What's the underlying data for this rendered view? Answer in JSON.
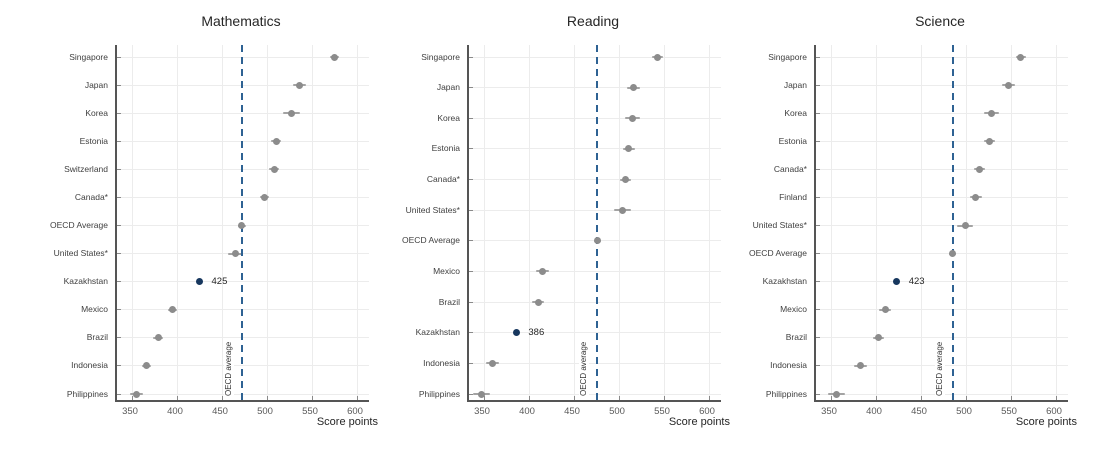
{
  "figure": {
    "background": "#ffffff",
    "highlight_country": "Kazakhstan",
    "reference_line_label": "OECD average",
    "colors": {
      "dot": "#8c8c8c",
      "highlight_dot": "#17375e",
      "reference_line": "#2e6293",
      "gridline": "#ececec",
      "axis": "#555555"
    }
  },
  "chart_data": [
    {
      "type": "scatter",
      "title": "Mathematics",
      "xlabel": "Score points",
      "xlim": [
        333,
        613
      ],
      "xticks": [
        350,
        400,
        450,
        500,
        550,
        600
      ],
      "grid": true,
      "reference_line": {
        "value": 472,
        "label": "OECD average"
      },
      "points": [
        {
          "label": "Singapore",
          "value": 575,
          "err": 2,
          "highlight": false
        },
        {
          "label": "Japan",
          "value": 536,
          "err": 4,
          "highlight": false
        },
        {
          "label": "Korea",
          "value": 527,
          "err": 6,
          "highlight": false
        },
        {
          "label": "Estonia",
          "value": 510,
          "err": 2,
          "highlight": false
        },
        {
          "label": "Switzerland",
          "value": 508,
          "err": 2,
          "highlight": false
        },
        {
          "label": "Canada*",
          "value": 497,
          "err": 2,
          "highlight": false
        },
        {
          "label": "OECD Average",
          "value": 472,
          "err": 1,
          "highlight": false
        },
        {
          "label": "United States*",
          "value": 465,
          "err": 5,
          "highlight": false
        },
        {
          "label": "Kazakhstan",
          "value": 425,
          "err": 0,
          "highlight": true,
          "value_label": "425"
        },
        {
          "label": "Mexico",
          "value": 395,
          "err": 2,
          "highlight": false
        },
        {
          "label": "Brazil",
          "value": 379,
          "err": 2,
          "highlight": false
        },
        {
          "label": "Indonesia",
          "value": 366,
          "err": 2,
          "highlight": false
        },
        {
          "label": "Philippines",
          "value": 355,
          "err": 4,
          "highlight": false
        }
      ]
    },
    {
      "type": "scatter",
      "title": "Reading",
      "xlabel": "Score points",
      "xlim": [
        333,
        613
      ],
      "xticks": [
        350,
        400,
        450,
        500,
        550,
        600
      ],
      "grid": true,
      "reference_line": {
        "value": 476,
        "label": "OECD average"
      },
      "points": [
        {
          "label": "Singapore",
          "value": 543,
          "err": 3,
          "highlight": false
        },
        {
          "label": "Japan",
          "value": 516,
          "err": 4,
          "highlight": false
        },
        {
          "label": "Korea",
          "value": 515,
          "err": 5,
          "highlight": false
        },
        {
          "label": "Estonia",
          "value": 511,
          "err": 3,
          "highlight": false
        },
        {
          "label": "Canada*",
          "value": 507,
          "err": 3,
          "highlight": false
        },
        {
          "label": "United States*",
          "value": 504,
          "err": 6,
          "highlight": false
        },
        {
          "label": "OECD Average",
          "value": 476,
          "err": 1,
          "highlight": false
        },
        {
          "label": "Mexico",
          "value": 415,
          "err": 4,
          "highlight": false
        },
        {
          "label": "Brazil",
          "value": 410,
          "err": 3,
          "highlight": false
        },
        {
          "label": "Kazakhstan",
          "value": 386,
          "err": 0,
          "highlight": true,
          "value_label": "386"
        },
        {
          "label": "Indonesia",
          "value": 359,
          "err": 4,
          "highlight": false
        },
        {
          "label": "Philippines",
          "value": 347,
          "err": 6,
          "highlight": false
        }
      ]
    },
    {
      "type": "scatter",
      "title": "Science",
      "xlabel": "Score points",
      "xlim": [
        333,
        613
      ],
      "xticks": [
        350,
        400,
        450,
        500,
        550,
        600
      ],
      "grid": true,
      "reference_line": {
        "value": 485,
        "label": "OECD average"
      },
      "points": [
        {
          "label": "Singapore",
          "value": 561,
          "err": 2,
          "highlight": false
        },
        {
          "label": "Japan",
          "value": 547,
          "err": 4,
          "highlight": false
        },
        {
          "label": "Korea",
          "value": 528,
          "err": 5,
          "highlight": false
        },
        {
          "label": "Estonia",
          "value": 526,
          "err": 3,
          "highlight": false
        },
        {
          "label": "Canada*",
          "value": 515,
          "err": 3,
          "highlight": false
        },
        {
          "label": "Finland",
          "value": 511,
          "err": 3,
          "highlight": false
        },
        {
          "label": "United States*",
          "value": 499,
          "err": 6,
          "highlight": false
        },
        {
          "label": "OECD Average",
          "value": 485,
          "err": 1,
          "highlight": false
        },
        {
          "label": "Kazakhstan",
          "value": 423,
          "err": 0,
          "highlight": true,
          "value_label": "423"
        },
        {
          "label": "Mexico",
          "value": 410,
          "err": 3,
          "highlight": false
        },
        {
          "label": "Brazil",
          "value": 403,
          "err": 3,
          "highlight": false
        },
        {
          "label": "Indonesia",
          "value": 383,
          "err": 4,
          "highlight": false
        },
        {
          "label": "Philippines",
          "value": 356,
          "err": 6,
          "highlight": false
        }
      ]
    }
  ]
}
